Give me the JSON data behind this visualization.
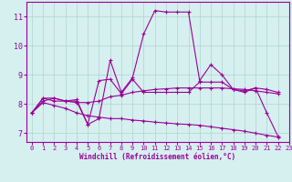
{
  "xlabel": "Windchill (Refroidissement éolien,°C)",
  "xlim": [
    -0.5,
    23
  ],
  "ylim": [
    6.7,
    11.5
  ],
  "xticks": [
    0,
    1,
    2,
    3,
    4,
    5,
    6,
    7,
    8,
    9,
    10,
    11,
    12,
    13,
    14,
    15,
    16,
    17,
    18,
    19,
    20,
    21,
    22,
    23
  ],
  "yticks": [
    7,
    8,
    9,
    10,
    11
  ],
  "background_color": "#d6efef",
  "grid_color": "#aed4d4",
  "line_color": "#990099",
  "series": [
    [
      7.7,
      8.2,
      8.1,
      8.1,
      8.1,
      7.3,
      7.5,
      9.5,
      8.4,
      8.9,
      10.4,
      11.2,
      11.15,
      11.15,
      11.15,
      8.8,
      9.35,
      9.0,
      8.5,
      8.4,
      8.55,
      7.7,
      6.9
    ],
    [
      7.7,
      8.2,
      8.2,
      8.1,
      8.15,
      7.3,
      8.8,
      8.85,
      8.35,
      8.85,
      8.4,
      8.4,
      8.4,
      8.4,
      8.4,
      8.75,
      8.75,
      8.75,
      8.5,
      8.45,
      8.55,
      8.5,
      8.4
    ],
    [
      7.7,
      8.1,
      8.2,
      8.1,
      8.05,
      8.05,
      8.1,
      8.25,
      8.3,
      8.4,
      8.45,
      8.5,
      8.52,
      8.55,
      8.55,
      8.55,
      8.55,
      8.55,
      8.52,
      8.5,
      8.45,
      8.4,
      8.35
    ],
    [
      7.7,
      8.05,
      7.95,
      7.85,
      7.7,
      7.6,
      7.55,
      7.5,
      7.5,
      7.45,
      7.42,
      7.38,
      7.35,
      7.32,
      7.3,
      7.27,
      7.22,
      7.17,
      7.12,
      7.07,
      7.0,
      6.93,
      6.87
    ]
  ],
  "x_values": [
    0,
    1,
    2,
    3,
    4,
    5,
    6,
    7,
    8,
    9,
    10,
    11,
    12,
    13,
    14,
    15,
    16,
    17,
    18,
    19,
    20,
    21,
    22
  ]
}
